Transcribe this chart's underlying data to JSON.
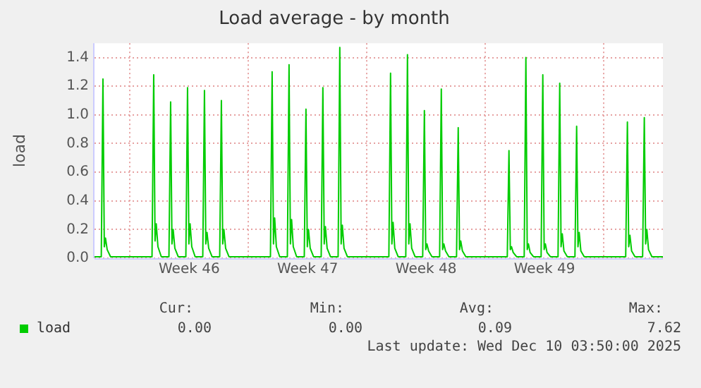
{
  "chart_data": {
    "type": "line",
    "title": "Load average - by month",
    "ylabel": "load",
    "x": [
      "2025-11-07T21:36",
      "2025-11-08T07:12",
      "2025-11-08T09:36",
      "2025-11-08T11:30",
      "2025-11-08T13:12",
      "2025-11-08T15:36",
      "2025-11-08T20:24",
      "2025-11-11T07:12",
      "2025-11-11T09:36",
      "2025-11-11T11:30",
      "2025-11-11T13:12",
      "2025-11-11T15:36",
      "2025-11-11T20:24",
      "2025-11-12T07:12",
      "2025-11-12T09:36",
      "2025-11-12T11:30",
      "2025-11-12T13:12",
      "2025-11-12T15:36",
      "2025-11-12T20:24",
      "2025-11-13T07:12",
      "2025-11-13T09:36",
      "2025-11-13T11:30",
      "2025-11-13T13:12",
      "2025-11-13T15:36",
      "2025-11-13T20:24",
      "2025-11-14T07:12",
      "2025-11-14T09:36",
      "2025-11-14T11:30",
      "2025-11-14T13:12",
      "2025-11-14T15:36",
      "2025-11-14T20:24",
      "2025-11-15T07:12",
      "2025-11-15T09:36",
      "2025-11-15T11:30",
      "2025-11-15T13:12",
      "2025-11-15T15:36",
      "2025-11-15T20:24",
      "2025-11-18T07:12",
      "2025-11-18T09:36",
      "2025-11-18T11:30",
      "2025-11-18T13:12",
      "2025-11-18T15:36",
      "2025-11-18T20:24",
      "2025-11-19T07:12",
      "2025-11-19T09:36",
      "2025-11-19T11:30",
      "2025-11-19T13:12",
      "2025-11-19T15:36",
      "2025-11-19T20:24",
      "2025-11-20T07:12",
      "2025-11-20T09:36",
      "2025-11-20T11:30",
      "2025-11-20T13:12",
      "2025-11-20T15:36",
      "2025-11-20T20:24",
      "2025-11-21T07:12",
      "2025-11-21T09:36",
      "2025-11-21T11:30",
      "2025-11-21T13:12",
      "2025-11-21T15:36",
      "2025-11-21T20:24",
      "2025-11-22T07:12",
      "2025-11-22T09:36",
      "2025-11-22T11:30",
      "2025-11-22T13:12",
      "2025-11-22T15:36",
      "2025-11-22T20:24",
      "2025-11-25T07:12",
      "2025-11-25T09:36",
      "2025-11-25T11:30",
      "2025-11-25T13:12",
      "2025-11-25T15:36",
      "2025-11-25T20:24",
      "2025-11-26T07:12",
      "2025-11-26T09:36",
      "2025-11-26T11:30",
      "2025-11-26T13:12",
      "2025-11-26T15:36",
      "2025-11-26T20:24",
      "2025-11-27T07:12",
      "2025-11-27T09:36",
      "2025-11-27T11:30",
      "2025-11-27T13:12",
      "2025-11-27T15:36",
      "2025-11-27T20:24",
      "2025-11-28T07:12",
      "2025-11-28T09:36",
      "2025-11-28T11:30",
      "2025-11-28T13:12",
      "2025-11-28T15:36",
      "2025-11-28T20:24",
      "2025-11-29T07:12",
      "2025-11-29T09:36",
      "2025-11-29T11:30",
      "2025-11-29T13:12",
      "2025-11-29T15:36",
      "2025-11-29T20:24",
      "2025-12-02T07:12",
      "2025-12-02T09:36",
      "2025-12-02T11:30",
      "2025-12-02T13:12",
      "2025-12-02T15:36",
      "2025-12-02T20:24",
      "2025-12-03T07:12",
      "2025-12-03T09:36",
      "2025-12-03T11:30",
      "2025-12-03T13:12",
      "2025-12-03T15:36",
      "2025-12-03T20:24",
      "2025-12-04T07:12",
      "2025-12-04T09:36",
      "2025-12-04T11:30",
      "2025-12-04T13:12",
      "2025-12-04T15:36",
      "2025-12-04T20:24",
      "2025-12-05T07:12",
      "2025-12-05T09:36",
      "2025-12-05T11:30",
      "2025-12-05T13:12",
      "2025-12-05T15:36",
      "2025-12-05T20:24",
      "2025-12-06T07:12",
      "2025-12-06T09:36",
      "2025-12-06T11:30",
      "2025-12-06T13:12",
      "2025-12-06T15:36",
      "2025-12-06T20:24",
      "2025-12-09T07:12",
      "2025-12-09T09:36",
      "2025-12-09T11:30",
      "2025-12-09T13:12",
      "2025-12-09T15:36",
      "2025-12-09T20:24",
      "2025-12-10T07:12",
      "2025-12-10T09:36",
      "2025-12-10T11:30",
      "2025-12-10T13:12",
      "2025-12-10T15:36",
      "2025-12-10T20:24",
      "2025-12-11T12:00"
    ],
    "series": [
      {
        "name": "load",
        "color": "#00cc00",
        "values": [
          0.01,
          0.01,
          1.25,
          0.08,
          0.14,
          0.06,
          0.01,
          0.01,
          1.28,
          0.12,
          0.24,
          0.08,
          0.01,
          0.01,
          1.09,
          0.1,
          0.2,
          0.07,
          0.01,
          0.01,
          1.19,
          0.1,
          0.24,
          0.08,
          0.01,
          0.01,
          1.17,
          0.1,
          0.18,
          0.07,
          0.01,
          0.01,
          1.1,
          0.1,
          0.2,
          0.07,
          0.01,
          0.01,
          1.3,
          0.1,
          0.28,
          0.08,
          0.01,
          0.01,
          1.35,
          0.1,
          0.27,
          0.08,
          0.01,
          0.01,
          1.04,
          0.08,
          0.2,
          0.07,
          0.01,
          0.01,
          1.19,
          0.1,
          0.22,
          0.07,
          0.01,
          0.01,
          1.47,
          0.1,
          0.23,
          0.07,
          0.01,
          0.01,
          1.29,
          0.1,
          0.25,
          0.07,
          0.01,
          0.01,
          1.42,
          0.1,
          0.24,
          0.07,
          0.01,
          0.01,
          1.03,
          0.06,
          0.1,
          0.05,
          0.01,
          0.01,
          1.18,
          0.06,
          0.1,
          0.05,
          0.01,
          0.01,
          0.91,
          0.06,
          0.12,
          0.05,
          0.01,
          0.01,
          0.75,
          0.06,
          0.08,
          0.04,
          0.01,
          0.01,
          1.4,
          0.06,
          0.1,
          0.04,
          0.01,
          0.01,
          1.28,
          0.06,
          0.1,
          0.04,
          0.01,
          0.01,
          1.22,
          0.08,
          0.17,
          0.05,
          0.01,
          0.01,
          0.92,
          0.08,
          0.18,
          0.05,
          0.01,
          0.01,
          0.95,
          0.08,
          0.16,
          0.05,
          0.01,
          0.01,
          0.98,
          0.1,
          0.2,
          0.06,
          0.01,
          0.01
        ]
      }
    ],
    "xlim": [
      "2025-11-07T21:36",
      "2025-12-11T12:00"
    ],
    "xticks": [
      {
        "value": "2025-11-10",
        "label": null
      },
      {
        "value": "2025-11-13T12:00",
        "label": "Week 46"
      },
      {
        "value": "2025-11-17",
        "label": null
      },
      {
        "value": "2025-11-20T12:00",
        "label": "Week 47"
      },
      {
        "value": "2025-11-24",
        "label": null
      },
      {
        "value": "2025-11-27T12:00",
        "label": "Week 48"
      },
      {
        "value": "2025-12-01",
        "label": null
      },
      {
        "value": "2025-12-04T12:00",
        "label": "Week 49"
      },
      {
        "value": "2025-12-08",
        "label": null
      }
    ],
    "ylim": [
      0,
      1.5
    ],
    "yticks": [
      {
        "value": 0,
        "label": "0.0"
      },
      {
        "value": 0.2,
        "label": "0.2"
      },
      {
        "value": 0.4,
        "label": "0.4"
      },
      {
        "value": 0.6,
        "label": "0.6"
      },
      {
        "value": 0.8,
        "label": "0.8"
      },
      {
        "value": 1,
        "label": "1.0"
      },
      {
        "value": 1.2,
        "label": "1.2"
      },
      {
        "value": 1.4,
        "label": "1.4"
      }
    ],
    "grid": true,
    "legend": "bottom",
    "marker": "none",
    "line_style": "solid",
    "annotations": [
      "Cur:",
      "0.00",
      "Min:",
      "0.00",
      "Avg:",
      "0.09",
      "Max:",
      "7.62",
      "Last update: Wed Dec 10 03:50:00 2025"
    ]
  }
}
